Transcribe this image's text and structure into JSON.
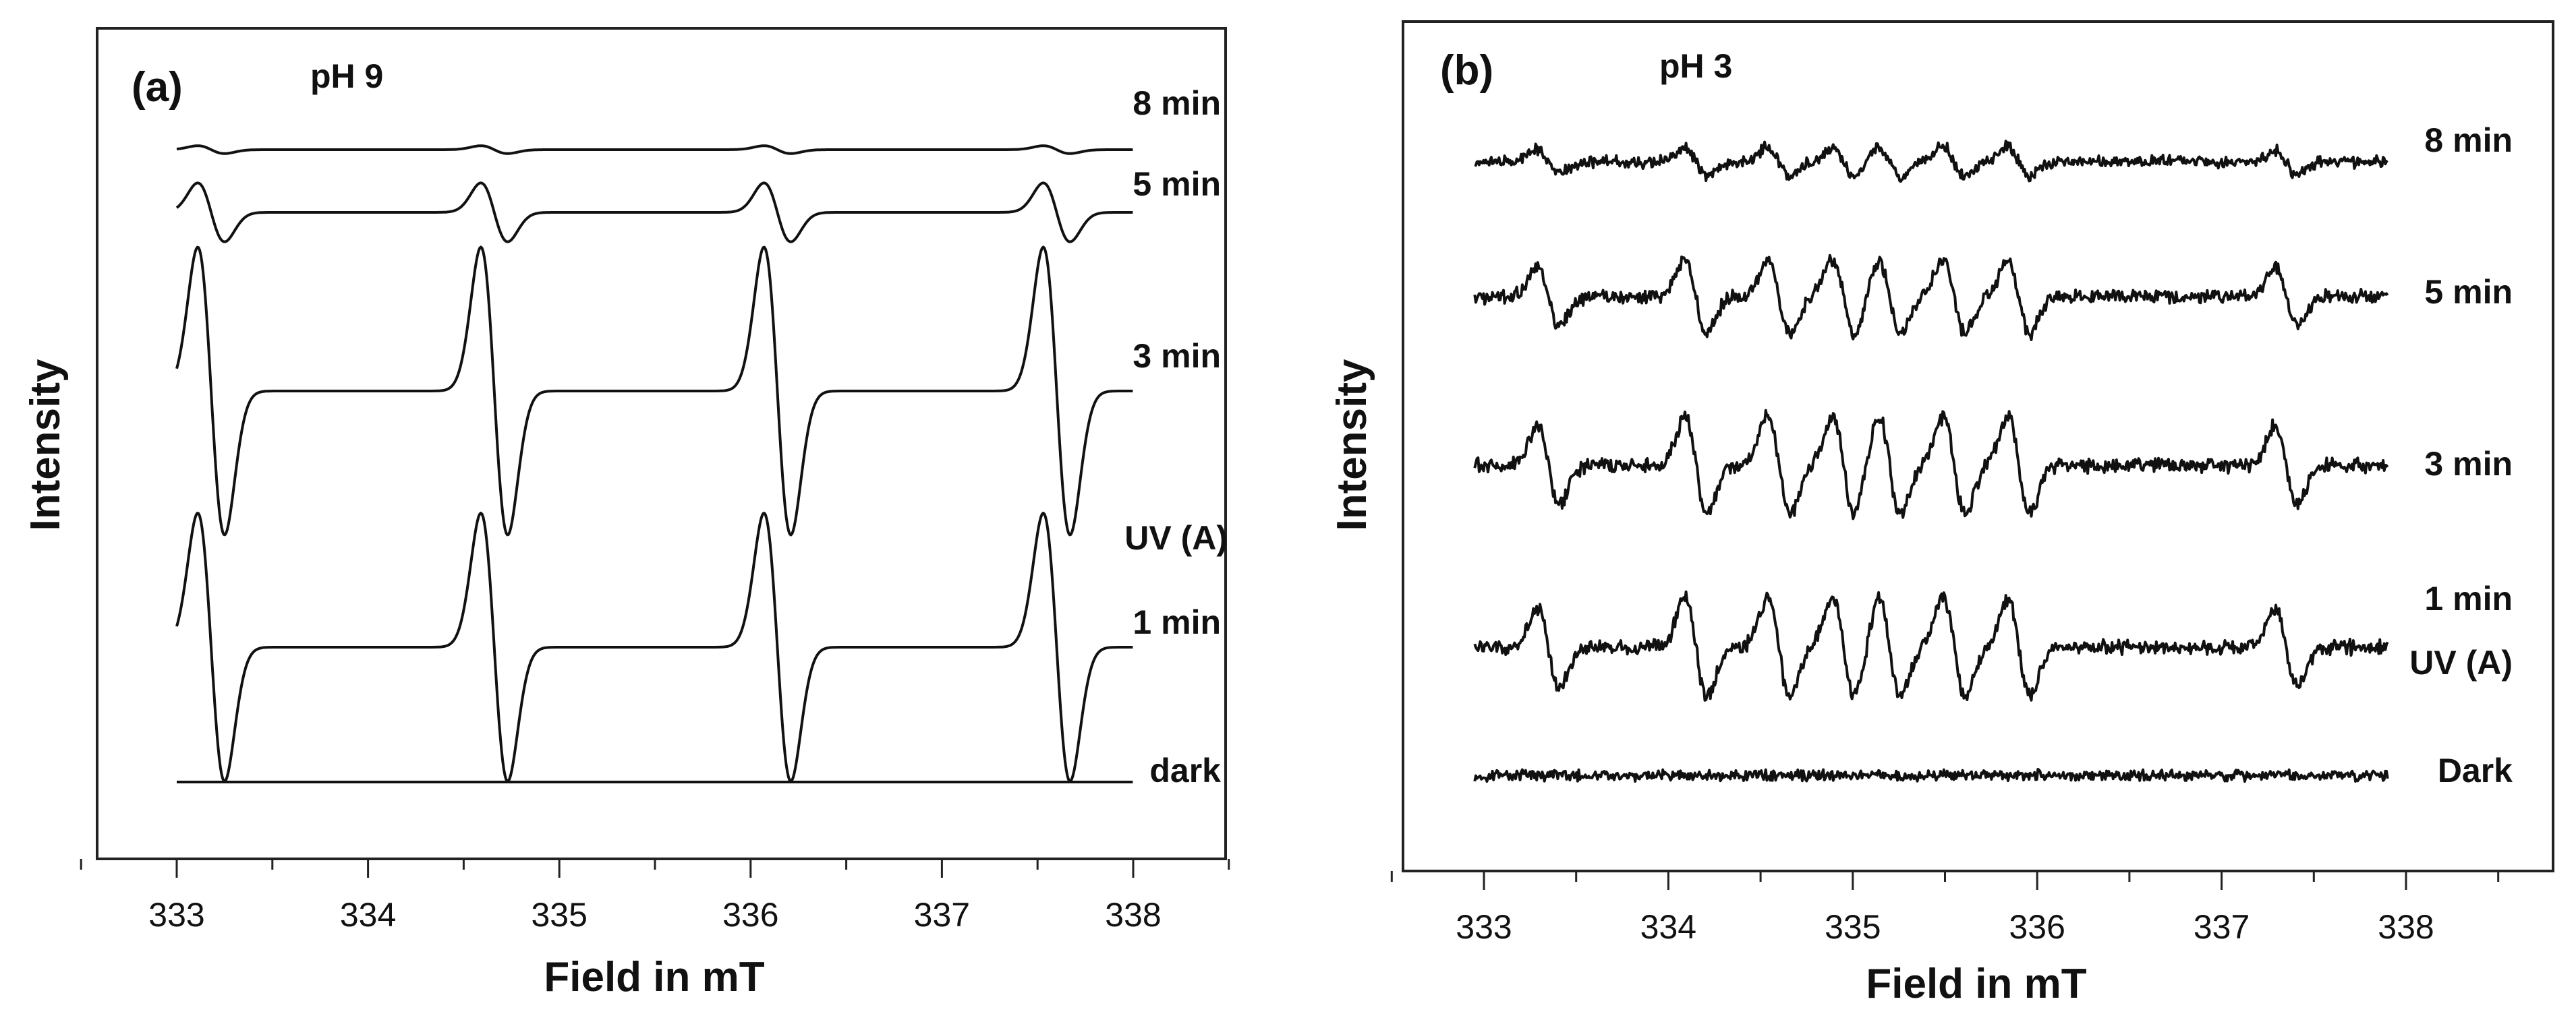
{
  "chart_data": [
    {
      "type": "line",
      "panel_label": "(a)",
      "condition": "pH 9",
      "xlabel": "Field in mT",
      "ylabel": "Intensity",
      "xlim": [
        332.5,
        338.5
      ],
      "xticks": [
        "333",
        "334",
        "335",
        "336",
        "337",
        "338"
      ],
      "peak_centers_mT": [
        333.18,
        334.66,
        336.14,
        337.6
      ],
      "series": [
        {
          "name": "8 min",
          "relative_amplitude": 0.06
        },
        {
          "name": "5 min",
          "relative_amplitude": 0.45
        },
        {
          "name": "3 min",
          "relative_amplitude": 2.2
        },
        {
          "name": "1 min",
          "relative_amplitude": 2.05
        },
        {
          "name": "dark",
          "relative_amplitude": 0.0
        }
      ],
      "annotations": [
        "UV (A)"
      ]
    },
    {
      "type": "line",
      "panel_label": "(b)",
      "condition": "pH 3",
      "xlabel": "Field in mT",
      "ylabel": "Intensity",
      "xlim": [
        332.5,
        338.5
      ],
      "xticks": [
        "333",
        "334",
        "335",
        "336",
        "337",
        "338"
      ],
      "peak_centers_mT": [
        333.35,
        334.15,
        334.6,
        334.95,
        335.2,
        335.55,
        335.9,
        337.35
      ],
      "series": [
        {
          "name": "8 min",
          "relative_amplitude": 0.3
        },
        {
          "name": "5 min",
          "relative_amplitude": 0.75
        },
        {
          "name": "3 min",
          "relative_amplitude": 1.0
        },
        {
          "name": "1 min",
          "relative_amplitude": 1.0
        },
        {
          "name": "Dark",
          "relative_amplitude": 0.0
        }
      ],
      "annotations": [
        "UV (A)"
      ]
    }
  ]
}
